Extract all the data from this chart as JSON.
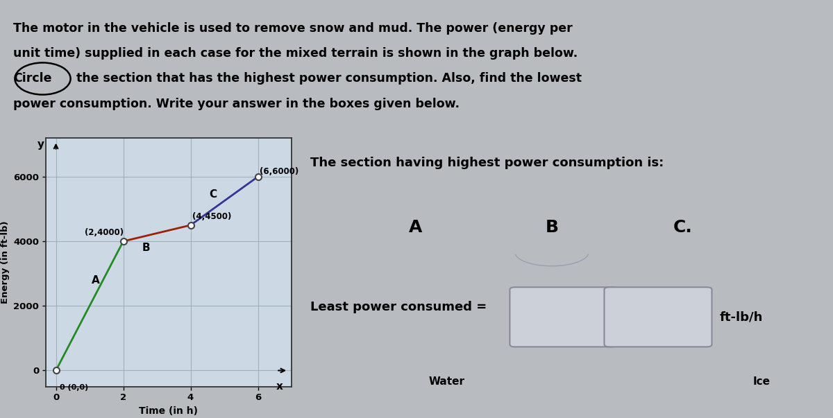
{
  "description_lines": [
    "The motor in the vehicle is used to remove snow and mud. The power (energy per",
    "unit time) supplied in each case for the mixed terrain is shown in the graph below.",
    "Circle  the section that has the highest power consumption. Also, find the lowest",
    "power consumption. Write your answer in the boxes given below."
  ],
  "graph_points": [
    [
      0,
      0
    ],
    [
      2,
      4000
    ],
    [
      4,
      4500
    ],
    [
      6,
      6000
    ]
  ],
  "ylabel": "Energy (in ft-lb)",
  "xlabel": "Time (in h)",
  "yticks": [
    0,
    2000,
    4000,
    6000
  ],
  "xticks": [
    0,
    2,
    4,
    6
  ],
  "xlim": [
    -0.3,
    7.0
  ],
  "ylim": [
    -500,
    7200
  ],
  "right_title": "The section having highest power consumption is:",
  "least_power_label": "Least power consumed =",
  "unit_label": "ft-lb/h",
  "bg_color": "#b8bcc0",
  "text_box_bg": "#e0e0e0",
  "graph_bg": "#ccd8e4",
  "grid_color": "#9aacba"
}
